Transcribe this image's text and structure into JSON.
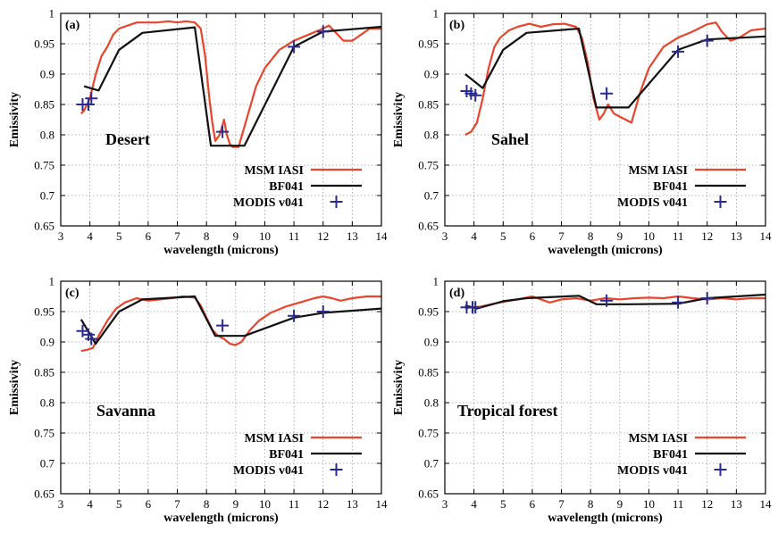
{
  "chart_data": [
    {
      "type": "line",
      "panel_label": "(a)",
      "region": "Desert",
      "xlabel": "wavelength (microns)",
      "ylabel": "Emissivity",
      "xlim": [
        3,
        14
      ],
      "ylim": [
        0.65,
        1
      ],
      "x_ticks": [
        3,
        4,
        5,
        6,
        7,
        8,
        9,
        10,
        11,
        12,
        13,
        14
      ],
      "y_ticks": [
        0.65,
        0.7,
        0.75,
        0.8,
        0.85,
        0.9,
        0.95,
        1
      ],
      "grid": true,
      "legend_position": "bottom-right",
      "series": [
        {
          "name": "MSM IASI",
          "kind": "line",
          "color": "#e8452c",
          "x": [
            3.7,
            3.8,
            4.0,
            4.2,
            4.4,
            4.6,
            4.8,
            5.0,
            5.3,
            5.6,
            5.9,
            6.3,
            6.7,
            7.0,
            7.3,
            7.6,
            7.8,
            7.95,
            8.1,
            8.2,
            8.3,
            8.45,
            8.6,
            8.7,
            8.8,
            8.9,
            9.1,
            9.4,
            9.7,
            10.0,
            10.5,
            11.0,
            11.5,
            12.0,
            12.2,
            12.4,
            12.7,
            13.0,
            13.3,
            13.6,
            14.0
          ],
          "y": [
            0.835,
            0.84,
            0.86,
            0.9,
            0.93,
            0.945,
            0.965,
            0.975,
            0.98,
            0.985,
            0.985,
            0.985,
            0.987,
            0.985,
            0.987,
            0.985,
            0.975,
            0.93,
            0.86,
            0.82,
            0.79,
            0.8,
            0.825,
            0.8,
            0.785,
            0.78,
            0.78,
            0.83,
            0.88,
            0.91,
            0.94,
            0.955,
            0.965,
            0.975,
            0.98,
            0.97,
            0.955,
            0.955,
            0.965,
            0.975,
            0.975
          ]
        },
        {
          "name": "BF041",
          "kind": "line",
          "color": "#111111",
          "x": [
            3.8,
            4.3,
            5.0,
            5.8,
            7.6,
            8.15,
            8.6,
            9.3,
            11.0,
            12.0,
            14.0
          ],
          "y": [
            0.88,
            0.873,
            0.94,
            0.968,
            0.977,
            0.782,
            0.782,
            0.782,
            0.945,
            0.97,
            0.978
          ]
        },
        {
          "name": "MODIS v041",
          "kind": "points",
          "color": "#2a2a8c",
          "x": [
            3.75,
            3.95,
            4.05,
            8.55,
            11.0,
            12.0
          ],
          "y": [
            0.85,
            0.85,
            0.86,
            0.805,
            0.945,
            0.97
          ]
        }
      ]
    },
    {
      "type": "line",
      "panel_label": "(b)",
      "region": "Sahel",
      "xlabel": "wavelength (microns)",
      "ylabel": "Emissivity",
      "xlim": [
        3,
        14
      ],
      "ylim": [
        0.65,
        1
      ],
      "x_ticks": [
        3,
        4,
        5,
        6,
        7,
        8,
        9,
        10,
        11,
        12,
        13,
        14
      ],
      "y_ticks": [
        0.65,
        0.7,
        0.75,
        0.8,
        0.85,
        0.9,
        0.95,
        1
      ],
      "grid": true,
      "legend_position": "bottom-right",
      "series": [
        {
          "name": "MSM IASI",
          "kind": "line",
          "color": "#e8452c",
          "x": [
            3.7,
            3.9,
            4.1,
            4.3,
            4.5,
            4.7,
            4.9,
            5.2,
            5.5,
            5.9,
            6.3,
            6.7,
            7.1,
            7.5,
            7.7,
            7.9,
            8.1,
            8.3,
            8.45,
            8.6,
            8.8,
            9.0,
            9.2,
            9.4,
            9.7,
            10.0,
            10.5,
            11.0,
            11.5,
            12.0,
            12.3,
            12.5,
            12.8,
            13.1,
            13.5,
            14.0
          ],
          "y": [
            0.8,
            0.805,
            0.82,
            0.86,
            0.91,
            0.945,
            0.96,
            0.972,
            0.978,
            0.983,
            0.978,
            0.982,
            0.983,
            0.978,
            0.96,
            0.92,
            0.86,
            0.825,
            0.835,
            0.85,
            0.835,
            0.83,
            0.825,
            0.82,
            0.87,
            0.91,
            0.945,
            0.96,
            0.97,
            0.982,
            0.985,
            0.97,
            0.955,
            0.96,
            0.972,
            0.975
          ]
        },
        {
          "name": "BF041",
          "kind": "line",
          "color": "#111111",
          "x": [
            3.7,
            4.3,
            5.0,
            5.8,
            7.6,
            8.2,
            8.6,
            9.3,
            11.0,
            12.0,
            14.0
          ],
          "y": [
            0.9,
            0.877,
            0.94,
            0.968,
            0.975,
            0.845,
            0.845,
            0.845,
            0.94,
            0.957,
            0.962
          ]
        },
        {
          "name": "MODIS v041",
          "kind": "points",
          "color": "#2a2a8c",
          "x": [
            3.75,
            3.9,
            4.05,
            8.55,
            11.0,
            12.0
          ],
          "y": [
            0.872,
            0.868,
            0.865,
            0.868,
            0.937,
            0.955
          ]
        }
      ]
    },
    {
      "type": "line",
      "panel_label": "(c)",
      "region": "Savanna",
      "xlabel": "wavelength (microns)",
      "ylabel": "Emissivity",
      "xlim": [
        3,
        14
      ],
      "ylim": [
        0.65,
        1
      ],
      "x_ticks": [
        3,
        4,
        5,
        6,
        7,
        8,
        9,
        10,
        11,
        12,
        13,
        14
      ],
      "y_ticks": [
        0.65,
        0.7,
        0.75,
        0.8,
        0.85,
        0.9,
        0.95,
        1
      ],
      "grid": true,
      "legend_position": "bottom-right",
      "series": [
        {
          "name": "MSM IASI",
          "kind": "line",
          "color": "#e8452c",
          "x": [
            3.7,
            3.9,
            4.1,
            4.3,
            4.6,
            4.9,
            5.2,
            5.6,
            6.0,
            6.4,
            6.8,
            7.2,
            7.6,
            7.8,
            8.0,
            8.2,
            8.4,
            8.6,
            8.8,
            9.0,
            9.2,
            9.5,
            9.8,
            10.2,
            10.7,
            11.2,
            11.7,
            12.0,
            12.3,
            12.6,
            13.0,
            13.5,
            14.0
          ],
          "y": [
            0.885,
            0.887,
            0.89,
            0.91,
            0.935,
            0.955,
            0.965,
            0.972,
            0.968,
            0.97,
            0.972,
            0.975,
            0.973,
            0.96,
            0.94,
            0.92,
            0.91,
            0.905,
            0.897,
            0.895,
            0.9,
            0.92,
            0.935,
            0.948,
            0.958,
            0.965,
            0.972,
            0.975,
            0.972,
            0.968,
            0.972,
            0.975,
            0.975
          ]
        },
        {
          "name": "BF041",
          "kind": "line",
          "color": "#111111",
          "x": [
            3.7,
            4.2,
            5.0,
            5.8,
            7.6,
            8.3,
            8.6,
            9.3,
            11.0,
            12.0,
            14.0
          ],
          "y": [
            0.937,
            0.897,
            0.95,
            0.97,
            0.975,
            0.91,
            0.91,
            0.91,
            0.94,
            0.948,
            0.955
          ]
        },
        {
          "name": "MODIS v041",
          "kind": "points",
          "color": "#2a2a8c",
          "x": [
            3.75,
            3.95,
            4.05,
            8.55,
            11.0,
            12.0
          ],
          "y": [
            0.918,
            0.912,
            0.905,
            0.927,
            0.943,
            0.95
          ]
        }
      ]
    },
    {
      "type": "line",
      "panel_label": "(d)",
      "region": "Tropical forest",
      "xlabel": "wavelength (microns)",
      "ylabel": "Emissivity",
      "xlim": [
        3,
        14
      ],
      "ylim": [
        0.65,
        1
      ],
      "x_ticks": [
        3,
        4,
        5,
        6,
        7,
        8,
        9,
        10,
        11,
        12,
        13,
        14
      ],
      "y_ticks": [
        0.65,
        0.7,
        0.75,
        0.8,
        0.85,
        0.9,
        0.95,
        1
      ],
      "grid": true,
      "legend_position": "bottom-right",
      "series": [
        {
          "name": "MSM IASI",
          "kind": "line",
          "color": "#e8452c",
          "x": [
            3.7,
            3.9,
            4.2,
            4.6,
            5.0,
            5.5,
            6.0,
            6.3,
            6.6,
            7.0,
            7.5,
            8.0,
            8.5,
            9.0,
            9.5,
            10.0,
            10.5,
            11.0,
            11.5,
            12.0,
            12.5,
            13.0,
            13.5,
            14.0
          ],
          "y": [
            0.955,
            0.957,
            0.958,
            0.962,
            0.966,
            0.97,
            0.975,
            0.97,
            0.965,
            0.97,
            0.972,
            0.968,
            0.972,
            0.97,
            0.972,
            0.973,
            0.972,
            0.975,
            0.972,
            0.97,
            0.972,
            0.97,
            0.972,
            0.972
          ]
        },
        {
          "name": "BF041",
          "kind": "line",
          "color": "#111111",
          "x": [
            3.7,
            4.1,
            5.0,
            5.8,
            7.6,
            8.2,
            8.6,
            9.3,
            11.0,
            12.0,
            14.0
          ],
          "y": [
            0.96,
            0.955,
            0.967,
            0.972,
            0.976,
            0.962,
            0.962,
            0.962,
            0.963,
            0.972,
            0.978
          ]
        },
        {
          "name": "MODIS v041",
          "kind": "points",
          "color": "#2a2a8c",
          "x": [
            3.75,
            3.95,
            4.05,
            8.55,
            11.0,
            12.0
          ],
          "y": [
            0.957,
            0.957,
            0.957,
            0.968,
            0.965,
            0.972
          ]
        }
      ]
    }
  ]
}
